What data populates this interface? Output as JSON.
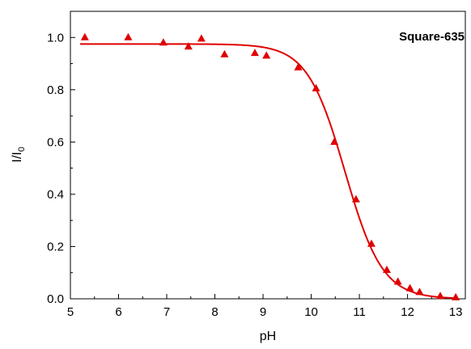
{
  "chart_data": {
    "type": "scatter",
    "title": "",
    "xlabel": "pH",
    "ylabel": "I/I",
    "ylabel_sub": "0",
    "annotation": "Square-635",
    "xlim": [
      5,
      13.2
    ],
    "ylim": [
      0,
      1.1
    ],
    "xticks": [
      5,
      6,
      7,
      8,
      9,
      10,
      11,
      12,
      13
    ],
    "xtick_labels": [
      "5",
      "6",
      "7",
      "8",
      "9",
      "10",
      "11",
      "12",
      "13"
    ],
    "yticks": [
      0,
      0.2,
      0.4,
      0.6,
      0.8,
      1.0
    ],
    "ytick_labels": [
      "0.0",
      "0.2",
      "0.4",
      "0.6",
      "0.8",
      "1.0"
    ],
    "grid": false,
    "colors": {
      "series": "#e00000",
      "axis": "#000000"
    },
    "series": [
      {
        "kind": "scatter",
        "marker": "triangle",
        "points": [
          [
            5.3,
            1.0
          ],
          [
            6.2,
            1.0
          ],
          [
            6.93,
            0.98
          ],
          [
            7.45,
            0.965
          ],
          [
            7.72,
            0.995
          ],
          [
            8.2,
            0.935
          ],
          [
            8.83,
            0.94
          ],
          [
            9.07,
            0.93
          ],
          [
            9.73,
            0.885
          ],
          [
            10.1,
            0.805
          ],
          [
            10.48,
            0.6
          ],
          [
            10.93,
            0.38
          ],
          [
            11.25,
            0.21
          ],
          [
            11.57,
            0.11
          ],
          [
            11.8,
            0.065
          ],
          [
            12.05,
            0.04
          ],
          [
            12.25,
            0.025
          ],
          [
            12.68,
            0.01
          ],
          [
            13.0,
            0.005
          ]
        ]
      },
      {
        "kind": "line",
        "fit": {
          "top": 0.975,
          "bottom": 0.0,
          "pKa": 10.7,
          "slope": 0.39
        },
        "x_range": [
          5.2,
          13.05
        ]
      }
    ]
  }
}
